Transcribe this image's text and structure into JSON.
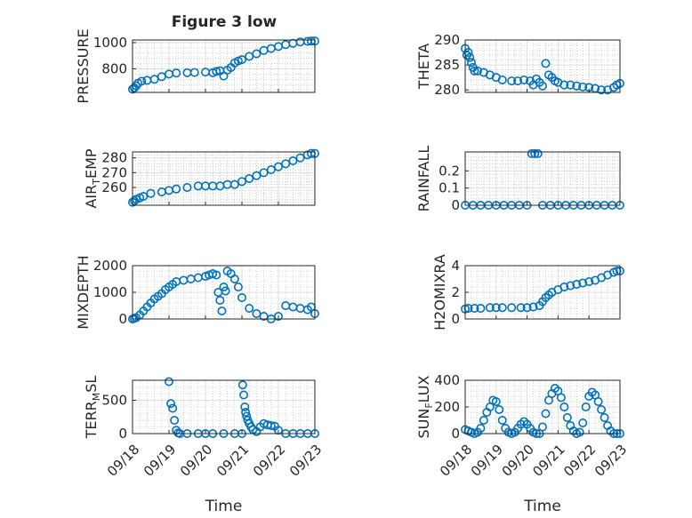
{
  "colors": {
    "marker": "#0072BD",
    "axis": "#262626",
    "grid": "#b5b5b5",
    "background": "#ffffff"
  },
  "chart_data": [
    {
      "type": "scatter",
      "title": "Figure 3 low",
      "ylabel": "PRESSURE",
      "ylabel_sub": "",
      "xlabel": "",
      "grid": "major+minor",
      "xlim": [
        0,
        5
      ],
      "ylim": [
        620,
        1020
      ],
      "yticks": [
        800,
        1000
      ],
      "yticklabels": [
        "800",
        "1000"
      ],
      "xticks": [
        0,
        1,
        2,
        3,
        4,
        5
      ],
      "xticklabels": [],
      "x": [
        0.0,
        0.05,
        0.1,
        0.15,
        0.25,
        0.4,
        0.6,
        0.8,
        1.0,
        1.2,
        1.5,
        1.7,
        2.0,
        2.2,
        2.3,
        2.4,
        2.5,
        2.6,
        2.7,
        2.8,
        2.9,
        3.0,
        3.2,
        3.4,
        3.6,
        3.8,
        4.0,
        4.2,
        4.4,
        4.6,
        4.8,
        4.9,
        5.0
      ],
      "y": [
        645,
        655,
        670,
        690,
        705,
        712,
        720,
        740,
        760,
        768,
        770,
        772,
        775,
        770,
        780,
        785,
        745,
        790,
        810,
        845,
        860,
        870,
        895,
        915,
        940,
        955,
        970,
        985,
        995,
        1005,
        1010,
        1012,
        1012
      ]
    },
    {
      "type": "scatter",
      "title": "",
      "ylabel": "THETA",
      "ylabel_sub": "",
      "xlabel": "",
      "grid": "major+minor",
      "xlim": [
        0,
        5
      ],
      "ylim": [
        279.5,
        290
      ],
      "yticks": [
        280,
        285,
        290
      ],
      "yticklabels": [
        "280",
        "285",
        "290"
      ],
      "xticks": [
        0,
        1,
        2,
        3,
        4,
        5
      ],
      "xticklabels": [],
      "x": [
        0.0,
        0.05,
        0.1,
        0.15,
        0.2,
        0.25,
        0.3,
        0.4,
        0.6,
        0.8,
        1.0,
        1.2,
        1.5,
        1.7,
        1.9,
        2.1,
        2.2,
        2.3,
        2.4,
        2.5,
        2.6,
        2.7,
        2.8,
        2.9,
        3.0,
        3.2,
        3.4,
        3.6,
        3.8,
        4.0,
        4.2,
        4.4,
        4.6,
        4.8,
        4.9,
        5.0
      ],
      "y": [
        288.3,
        287.0,
        287.5,
        286.5,
        285.5,
        284.5,
        283.8,
        283.8,
        283.5,
        283.0,
        282.5,
        282.0,
        281.8,
        281.8,
        282.0,
        281.8,
        281.0,
        282.2,
        281.5,
        280.8,
        285.3,
        283.0,
        282.5,
        281.8,
        281.5,
        281.0,
        281.0,
        280.8,
        280.6,
        280.5,
        280.3,
        280.0,
        280.0,
        280.5,
        281.0,
        281.3
      ]
    },
    {
      "type": "scatter",
      "title": "",
      "ylabel": "AIR",
      "ylabel_sub": "T",
      "ylabel_suffix": "EMP",
      "xlabel": "",
      "grid": "major+minor",
      "xlim": [
        0,
        5
      ],
      "ylim": [
        248,
        284
      ],
      "yticks": [
        260,
        270,
        280
      ],
      "yticklabels": [
        "260",
        "270",
        "280"
      ],
      "xticks": [
        0,
        1,
        2,
        3,
        4,
        5
      ],
      "xticklabels": [],
      "x": [
        0.0,
        0.05,
        0.1,
        0.2,
        0.3,
        0.5,
        0.8,
        1.0,
        1.2,
        1.5,
        1.8,
        2.0,
        2.2,
        2.4,
        2.6,
        2.8,
        3.0,
        3.2,
        3.4,
        3.6,
        3.8,
        4.0,
        4.2,
        4.4,
        4.6,
        4.8,
        4.9,
        5.0
      ],
      "y": [
        250,
        251,
        252,
        253,
        254,
        256,
        257,
        258,
        259,
        260,
        261,
        261,
        261,
        261,
        262,
        262,
        264,
        266,
        268,
        270,
        272,
        274,
        276,
        278,
        280,
        282,
        283,
        283
      ]
    },
    {
      "type": "scatter",
      "title": "",
      "ylabel": "RAINFALL",
      "ylabel_sub": "",
      "xlabel": "",
      "grid": "major+minor",
      "xlim": [
        0,
        5
      ],
      "ylim": [
        0,
        0.31
      ],
      "yticks": [
        0,
        0.1,
        0.2
      ],
      "yticklabels": [
        "0",
        "0.1",
        "0.2"
      ],
      "xticks": [
        0,
        1,
        2,
        3,
        4,
        5
      ],
      "xticklabels": [],
      "x": [
        0.0,
        0.25,
        0.5,
        0.75,
        1.0,
        1.25,
        1.5,
        1.75,
        2.0,
        2.15,
        2.25,
        2.35,
        2.5,
        2.75,
        3.0,
        3.25,
        3.5,
        3.75,
        4.0,
        4.25,
        4.5,
        4.75,
        5.0
      ],
      "y": [
        0,
        0,
        0,
        0,
        0,
        0,
        0,
        0,
        0,
        0.3,
        0.3,
        0.3,
        0,
        0,
        0,
        0,
        0,
        0,
        0,
        0,
        0,
        0,
        0
      ]
    },
    {
      "type": "scatter",
      "title": "",
      "ylabel": "MIXDEPTH",
      "ylabel_sub": "",
      "xlabel": "",
      "grid": "major+minor",
      "xlim": [
        0,
        5
      ],
      "ylim": [
        0,
        2000
      ],
      "yticks": [
        0,
        1000,
        2000
      ],
      "yticklabels": [
        "0",
        "1000",
        "2000"
      ],
      "xticks": [
        0,
        1,
        2,
        3,
        4,
        5
      ],
      "xticklabels": [],
      "x": [
        0.0,
        0.05,
        0.1,
        0.2,
        0.3,
        0.4,
        0.5,
        0.6,
        0.7,
        0.8,
        0.9,
        1.0,
        1.1,
        1.2,
        1.4,
        1.6,
        1.8,
        2.0,
        2.1,
        2.2,
        2.3,
        2.35,
        2.4,
        2.45,
        2.5,
        2.55,
        2.6,
        2.7,
        2.8,
        2.9,
        3.0,
        3.2,
        3.4,
        3.6,
        3.8,
        4.0,
        4.2,
        4.4,
        4.6,
        4.8,
        4.9,
        5.0
      ],
      "y": [
        0,
        20,
        50,
        150,
        300,
        450,
        600,
        750,
        850,
        950,
        1100,
        1200,
        1300,
        1400,
        1450,
        1500,
        1550,
        1600,
        1650,
        1700,
        1650,
        1000,
        700,
        300,
        1200,
        1050,
        1800,
        1700,
        1500,
        1200,
        800,
        400,
        200,
        100,
        0,
        100,
        500,
        450,
        400,
        350,
        450,
        200
      ]
    },
    {
      "type": "scatter",
      "title": "",
      "ylabel": "H2OMIXRA",
      "ylabel_sub": "",
      "xlabel": "",
      "grid": "major+minor",
      "xlim": [
        0,
        5
      ],
      "ylim": [
        0,
        4
      ],
      "yticks": [
        0,
        2,
        4
      ],
      "yticklabels": [
        "0",
        "2",
        "4"
      ],
      "xticks": [
        0,
        1,
        2,
        3,
        4,
        5
      ],
      "xticklabels": [],
      "x": [
        0.0,
        0.1,
        0.3,
        0.5,
        0.8,
        1.0,
        1.2,
        1.5,
        1.8,
        2.0,
        2.2,
        2.4,
        2.5,
        2.6,
        2.7,
        2.8,
        3.0,
        3.2,
        3.4,
        3.6,
        3.8,
        4.0,
        4.2,
        4.4,
        4.6,
        4.8,
        4.9,
        5.0
      ],
      "y": [
        0.75,
        0.8,
        0.8,
        0.8,
        0.85,
        0.85,
        0.85,
        0.85,
        0.85,
        0.85,
        0.9,
        1.0,
        1.3,
        1.6,
        1.8,
        2.0,
        2.2,
        2.4,
        2.5,
        2.6,
        2.7,
        2.8,
        2.9,
        3.1,
        3.3,
        3.5,
        3.6,
        3.6
      ]
    },
    {
      "type": "scatter",
      "title": "",
      "ylabel": "TERR",
      "ylabel_sub": "M",
      "ylabel_suffix": "SL",
      "xlabel": "Time",
      "grid": "major+minor",
      "xlim": [
        0,
        5
      ],
      "ylim": [
        0,
        800
      ],
      "yticks": [
        0,
        500
      ],
      "yticklabels": [
        "0",
        "500"
      ],
      "xticks": [
        0,
        1,
        2,
        3,
        4,
        5
      ],
      "xticklabels": [
        "09/18",
        "09/19",
        "09/20",
        "09/21",
        "09/22",
        "09/23"
      ],
      "x": [
        1.0,
        1.05,
        1.1,
        1.15,
        1.2,
        1.25,
        1.3,
        1.5,
        1.8,
        2.0,
        2.2,
        2.5,
        2.8,
        3.0,
        3.02,
        3.05,
        3.08,
        3.1,
        3.13,
        3.16,
        3.2,
        3.25,
        3.3,
        3.4,
        3.5,
        3.6,
        3.7,
        3.8,
        3.9,
        4.0,
        4.2,
        4.4,
        4.6,
        4.8,
        5.0
      ],
      "y": [
        780,
        450,
        380,
        200,
        50,
        10,
        0,
        0,
        0,
        0,
        0,
        0,
        0,
        0,
        730,
        580,
        400,
        320,
        260,
        200,
        150,
        100,
        60,
        30,
        100,
        150,
        130,
        120,
        110,
        50,
        0,
        0,
        0,
        0,
        0
      ]
    },
    {
      "type": "scatter",
      "title": "",
      "ylabel": "SUN",
      "ylabel_sub": "F",
      "ylabel_suffix": "LUX",
      "xlabel": "Time",
      "grid": "major+minor",
      "xlim": [
        0,
        5
      ],
      "ylim": [
        0,
        400
      ],
      "yticks": [
        0,
        200,
        400
      ],
      "yticklabels": [
        "0",
        "200",
        "400"
      ],
      "xticks": [
        0,
        1,
        2,
        3,
        4,
        5
      ],
      "xticklabels": [
        "09/18",
        "09/19",
        "09/20",
        "09/21",
        "09/22",
        "09/23"
      ],
      "x": [
        0.0,
        0.1,
        0.2,
        0.3,
        0.4,
        0.5,
        0.6,
        0.7,
        0.8,
        0.9,
        1.0,
        1.1,
        1.2,
        1.3,
        1.4,
        1.5,
        1.6,
        1.7,
        1.8,
        1.9,
        2.0,
        2.1,
        2.2,
        2.3,
        2.4,
        2.5,
        2.6,
        2.7,
        2.8,
        2.9,
        3.0,
        3.1,
        3.2,
        3.3,
        3.4,
        3.5,
        3.6,
        3.7,
        3.8,
        3.9,
        4.0,
        4.1,
        4.2,
        4.3,
        4.4,
        4.5,
        4.6,
        4.7,
        4.8,
        4.9,
        5.0
      ],
      "y": [
        30,
        20,
        10,
        0,
        10,
        40,
        100,
        160,
        200,
        250,
        240,
        180,
        100,
        40,
        10,
        0,
        10,
        40,
        70,
        90,
        70,
        40,
        10,
        0,
        0,
        50,
        150,
        250,
        300,
        340,
        320,
        270,
        200,
        120,
        60,
        20,
        0,
        10,
        80,
        200,
        280,
        310,
        290,
        240,
        180,
        120,
        60,
        20,
        0,
        0,
        0
      ]
    }
  ]
}
